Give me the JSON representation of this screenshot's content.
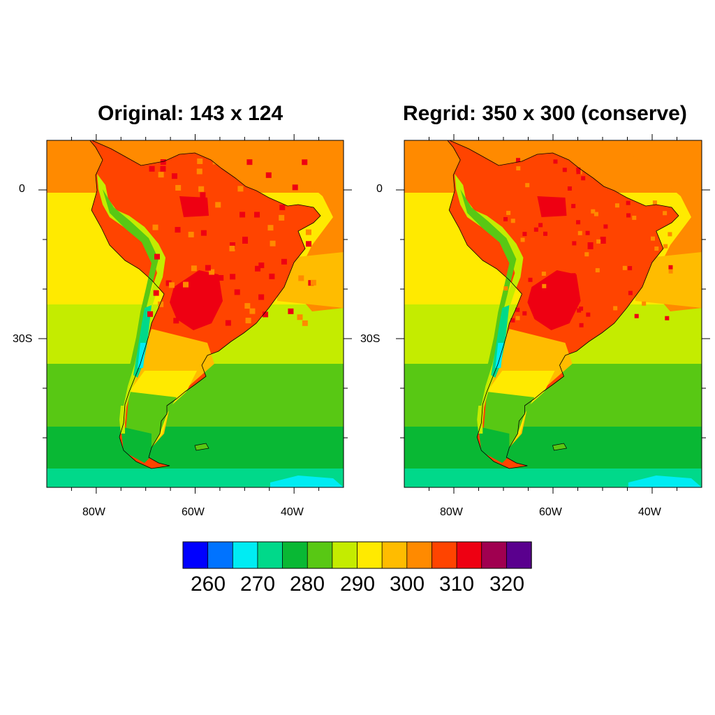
{
  "panels": [
    {
      "title": "Original: 143 x 124",
      "lat_labels": [
        "0",
        "30S"
      ],
      "lon_labels": [
        "80W",
        "60W",
        "40W"
      ]
    },
    {
      "title": "Regrid: 350 x 300 (conserve)",
      "lat_labels": [
        "0",
        "30S"
      ],
      "lon_labels": [
        "80W",
        "60W",
        "40W"
      ]
    }
  ],
  "colorbar": {
    "colors": [
      "#0000ff",
      "#0073ff",
      "#00ecf3",
      "#00d98a",
      "#09b834",
      "#58c814",
      "#c4ec00",
      "#ffea00",
      "#ffbc00",
      "#ff8a00",
      "#ff4400",
      "#ee0012",
      "#a00050",
      "#5a008e"
    ],
    "labels": [
      "260",
      "270",
      "280",
      "290",
      "300",
      "310",
      "320"
    ]
  },
  "chart_data": {
    "type": "heatmap",
    "map_extent": {
      "lon": [
        -90,
        -30
      ],
      "lat": [
        -60,
        10
      ]
    },
    "lat_ticks": [
      0,
      -30
    ],
    "lon_ticks": [
      -80,
      -60,
      -40
    ],
    "contour_levels": [
      255,
      260,
      265,
      270,
      275,
      280,
      285,
      290,
      295,
      300,
      305,
      310,
      315,
      320,
      325
    ],
    "colorbar_labels": [
      "260",
      "270",
      "280",
      "290",
      "300",
      "310",
      "320"
    ]
  }
}
